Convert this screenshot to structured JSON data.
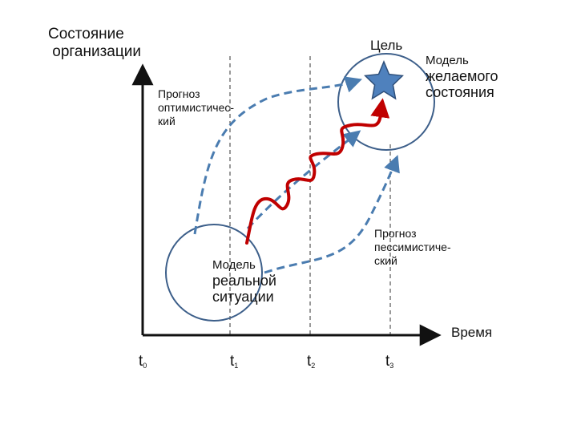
{
  "diagram": {
    "y_axis_title": "Состояние\n организации",
    "x_axis_title": "Время",
    "goal_label": "Цель",
    "desired_model": {
      "line1": "Модель",
      "line2": "желаемого\nсостояния"
    },
    "real_model": {
      "line1": "Модель",
      "line2": "реальной\nситуации"
    },
    "optimistic_forecast": "Прогноз\nоптимистичес-\nкий",
    "pessimistic_forecast": "Прогноз\nпессимистиче-\nский",
    "time_ticks": [
      {
        "base": "t",
        "sub": "0"
      },
      {
        "base": "t",
        "sub": "1"
      },
      {
        "base": "t",
        "sub": "2"
      },
      {
        "base": "t",
        "sub": "3"
      }
    ],
    "colors": {
      "axes": "#111111",
      "circles": "#3d5f8a",
      "forecast_dashed": "#4a7cb0",
      "actual_path": "#c00000",
      "star_fill": "#4f81bd",
      "star_stroke": "#2e4f7a",
      "guide_dashed": "#333333"
    }
  }
}
